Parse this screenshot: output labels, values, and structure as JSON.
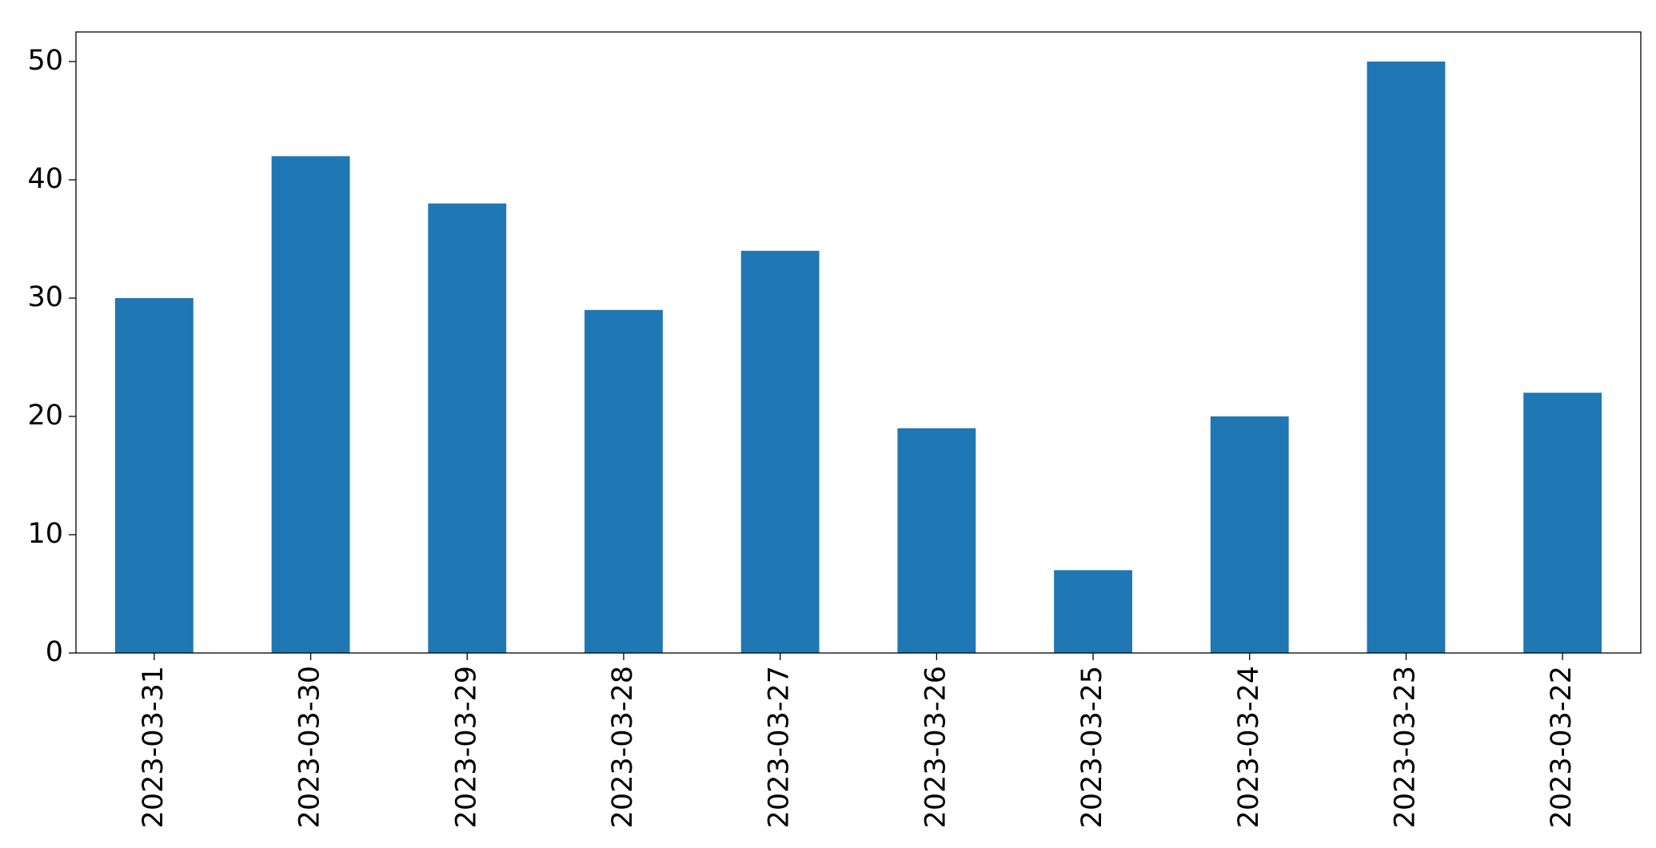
{
  "chart_data": {
    "type": "bar",
    "categories": [
      "2023-03-31",
      "2023-03-30",
      "2023-03-29",
      "2023-03-28",
      "2023-03-27",
      "2023-03-26",
      "2023-03-25",
      "2023-03-24",
      "2023-03-23",
      "2023-03-22"
    ],
    "values": [
      30,
      42,
      38,
      29,
      34,
      19,
      7,
      20,
      50,
      22
    ],
    "color": "#1f77b4",
    "ylim": [
      0,
      52.5
    ],
    "yticks": [
      0,
      10,
      20,
      30,
      40,
      50
    ],
    "grid": false
  }
}
